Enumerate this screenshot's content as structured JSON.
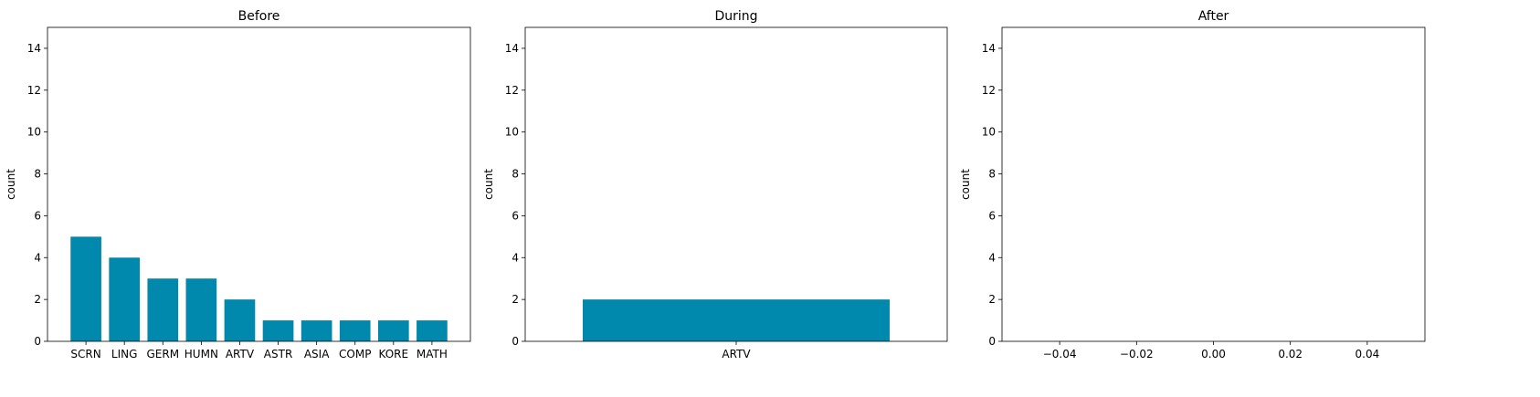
{
  "chart_data": [
    {
      "type": "bar",
      "title": "Before",
      "xlabel": "",
      "ylabel": "count",
      "ylim": [
        0,
        15
      ],
      "yticks": [
        0,
        2,
        4,
        6,
        8,
        10,
        12,
        14
      ],
      "grid": false,
      "categories": [
        "SCRN",
        "LING",
        "GERM",
        "HUMN",
        "ARTV",
        "ASTR",
        "ASIA",
        "COMP",
        "KORE",
        "MATH"
      ],
      "values": [
        5,
        4,
        3,
        3,
        2,
        1,
        1,
        1,
        1,
        1
      ],
      "color": "#0088ad"
    },
    {
      "type": "bar",
      "title": "During",
      "xlabel": "",
      "ylabel": "count",
      "ylim": [
        0,
        15
      ],
      "yticks": [
        0,
        2,
        4,
        6,
        8,
        10,
        12,
        14
      ],
      "grid": false,
      "categories": [
        "ARTV"
      ],
      "values": [
        2
      ],
      "color": "#0088ad"
    },
    {
      "type": "bar",
      "title": "After",
      "xlabel": "",
      "ylabel": "count",
      "ylim": [
        0,
        15
      ],
      "yticks": [
        0,
        2,
        4,
        6,
        8,
        10,
        12,
        14
      ],
      "grid": false,
      "xlim": [
        -0.055,
        0.055
      ],
      "xticks": [
        "−0.04",
        "−0.02",
        "0.00",
        "0.02",
        "0.04"
      ],
      "xtick_values": [
        -0.04,
        -0.02,
        0,
        0.02,
        0.04
      ],
      "categories": [],
      "values": [],
      "color": "#0088ad"
    }
  ]
}
